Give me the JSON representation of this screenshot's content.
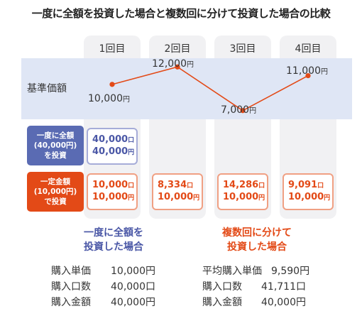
{
  "title": "一度に全額を投資した場合と複数回に分けて投資した場合の比較",
  "row_label": "基準価額",
  "chart_data": {
    "type": "line",
    "categories": [
      "1回目",
      "2回目",
      "3回目",
      "4回目"
    ],
    "series": [
      {
        "values": [
          10000,
          12000,
          7000,
          11000
        ],
        "labels": [
          "10,000",
          "12,000",
          "7,000",
          "11,000"
        ]
      }
    ],
    "unit_label": "円",
    "ylim": [
      6000,
      13000
    ],
    "line_color": "#e34a17",
    "marker_color": "#e34a17"
  },
  "lump_tag": [
    "一度に全額",
    "(40,000円)",
    "を投資"
  ],
  "dca_tag": [
    "一定金額",
    "(10,000円)",
    "で投資"
  ],
  "lump_box": {
    "line1": "40,000",
    "line2": "40,000",
    "unit1": "口",
    "unit2": "円"
  },
  "dca_boxes": [
    {
      "line1": "10,000",
      "line2": "10,000",
      "unit1": "口",
      "unit2": "円"
    },
    {
      "line1": "8,334",
      "line2": "10,000",
      "unit1": "口",
      "unit2": "円"
    },
    {
      "line1": "14,286",
      "line2": "10,000",
      "unit1": "口",
      "unit2": "円"
    },
    {
      "line1": "9,091",
      "line2": "10,000",
      "unit1": "口",
      "unit2": "円"
    }
  ],
  "summary_left": {
    "heading": [
      "一度に全額を",
      "投資した場合"
    ],
    "rows": [
      {
        "label": "購入単価",
        "value": "10,000円"
      },
      {
        "label": "購入口数",
        "value": "40,000口"
      },
      {
        "label": "購入金額",
        "value": "40,000円"
      }
    ]
  },
  "summary_right": {
    "heading": [
      "複数回に分けて",
      "投資した場合"
    ],
    "rows": [
      {
        "label": "平均購入単価",
        "value": "9,590円"
      },
      {
        "label": "購入口数",
        "value": "41,711口"
      },
      {
        "label": "購入金額",
        "value": "40,000円"
      }
    ]
  },
  "colors": {
    "blue": "#5a6bb3",
    "red": "#e34a17",
    "band": "#dfe6f5",
    "column": "#f1f1f3"
  }
}
